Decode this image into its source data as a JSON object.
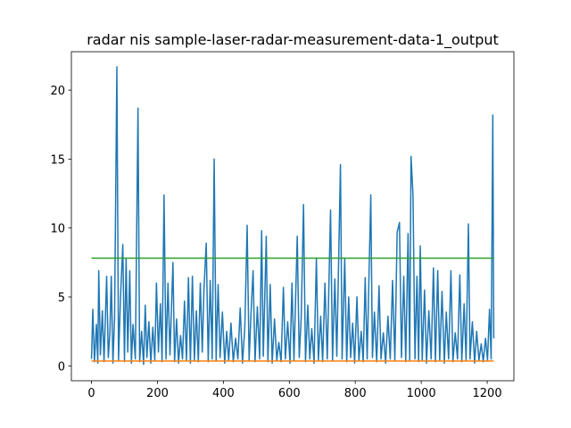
{
  "chart_data": {
    "type": "line",
    "title": "radar nis sample-laser-radar-measurement-data-1_output",
    "xlim": [
      -61,
      1281
    ],
    "ylim": [
      -1.08,
      22.79
    ],
    "xticks": [
      0,
      200,
      400,
      600,
      800,
      1000,
      1200
    ],
    "yticks": [
      0,
      5,
      10,
      15,
      20
    ],
    "series": [
      {
        "color": "#1f77b4",
        "x": [
          0,
          4,
          9,
          15,
          19,
          22,
          27,
          33,
          38,
          46,
          51,
          56,
          60,
          65,
          70,
          77,
          82,
          88,
          95,
          100,
          105,
          110,
          116,
          121,
          126,
          133,
          141,
          146,
          152,
          158,
          163,
          168,
          174,
          180,
          186,
          192,
          197,
          203,
          209,
          214,
          220,
          226,
          232,
          238,
          247,
          252,
          258,
          264,
          270,
          276,
          282,
          288,
          294,
          300,
          306,
          312,
          318,
          324,
          330,
          336,
          341,
          348,
          354,
          360,
          366,
          372,
          378,
          384,
          390,
          397,
          404,
          410,
          416,
          423,
          430,
          437,
          444,
          451,
          458,
          465,
          472,
          478,
          484,
          490,
          496,
          503,
          510,
          516,
          521,
          530,
          535,
          542,
          548,
          555,
          562,
          568,
          575,
          582,
          588,
          595,
          602,
          608,
          614,
          624,
          630,
          636,
          643,
          649,
          656,
          662,
          668,
          675,
          682,
          688,
          695,
          701,
          708,
          715,
          725,
          731,
          738,
          744,
          755,
          760,
          768,
          774,
          780,
          786,
          792,
          798,
          805,
          811,
          818,
          824,
          830,
          836,
          847,
          852,
          858,
          865,
          872,
          878,
          885,
          892,
          899,
          906,
          913,
          920,
          927,
          934,
          940,
          947,
          953,
          960,
          965,
          969,
          975,
          981,
          987,
          992,
          997,
          1003,
          1010,
          1016,
          1023,
          1030,
          1037,
          1043,
          1050,
          1056,
          1063,
          1070,
          1076,
          1083,
          1090,
          1096,
          1103,
          1110,
          1117,
          1123,
          1130,
          1136,
          1143,
          1148,
          1155,
          1162,
          1168,
          1175,
          1182,
          1188,
          1195,
          1201,
          1207,
          1212,
          1217,
          1220
        ],
        "values": [
          0.5,
          4.1,
          0.3,
          3.0,
          0.2,
          6.9,
          0.8,
          4.0,
          0.3,
          6.5,
          0.6,
          2.5,
          6.5,
          0.2,
          3.5,
          21.7,
          0.4,
          5.0,
          8.8,
          0.3,
          7.8,
          1.0,
          6.9,
          0.2,
          3.0,
          0.5,
          18.7,
          0.3,
          2.5,
          0.1,
          4.4,
          0.6,
          3.2,
          0.2,
          2.8,
          0.4,
          6.0,
          1.0,
          4.5,
          0.3,
          12.4,
          0.5,
          6.0,
          0.8,
          7.5,
          0.3,
          3.4,
          0.2,
          2.2,
          0.5,
          4.7,
          0.4,
          6.4,
          0.2,
          6.5,
          0.4,
          4.0,
          0.3,
          6.0,
          1.0,
          5.5,
          8.9,
          0.3,
          6.2,
          0.5,
          15.0,
          0.4,
          5.9,
          0.6,
          3.9,
          0.2,
          2.5,
          0.4,
          3.1,
          0.3,
          2.0,
          0.5,
          4.2,
          0.2,
          2.8,
          10.2,
          0.4,
          3.9,
          6.9,
          0.3,
          4.3,
          0.5,
          9.8,
          0.7,
          9.4,
          0.3,
          5.9,
          0.2,
          3.4,
          0.4,
          1.7,
          0.3,
          5.7,
          0.5,
          3.2,
          0.2,
          6.0,
          0.4,
          9.4,
          0.6,
          3.5,
          11.7,
          0.3,
          4.4,
          0.5,
          2.7,
          0.2,
          7.8,
          0.4,
          3.6,
          0.3,
          6.0,
          0.5,
          11.3,
          0.4,
          6.3,
          0.7,
          14.6,
          0.5,
          7.8,
          0.3,
          5.0,
          0.6,
          3.1,
          0.2,
          5.0,
          0.4,
          2.5,
          0.3,
          6.4,
          0.5,
          12.4,
          0.6,
          3.9,
          0.3,
          5.8,
          0.5,
          2.4,
          0.2,
          3.6,
          0.5,
          6.2,
          0.4,
          9.7,
          10.4,
          0.6,
          6.5,
          0.3,
          9.6,
          0.4,
          15.2,
          12.4,
          0.5,
          6.5,
          0.3,
          8.7,
          0.4,
          5.5,
          0.2,
          4.0,
          0.5,
          7.1,
          0.3,
          6.9,
          0.4,
          5.4,
          0.2,
          3.9,
          0.5,
          6.9,
          0.3,
          2.4,
          0.5,
          6.6,
          0.3,
          4.5,
          0.4,
          10.3,
          0.5,
          3.2,
          0.2,
          2.5,
          0.4,
          1.6,
          0.3,
          2.0,
          0.4,
          4.1,
          0.5,
          18.2,
          2.0
        ]
      },
      {
        "color": "#ff7f0e",
        "x": [
          0,
          1220
        ],
        "values": [
          0.352,
          0.352
        ]
      },
      {
        "color": "#2ca02c",
        "x": [
          0,
          1220
        ],
        "values": [
          7.815,
          7.815
        ]
      }
    ]
  }
}
